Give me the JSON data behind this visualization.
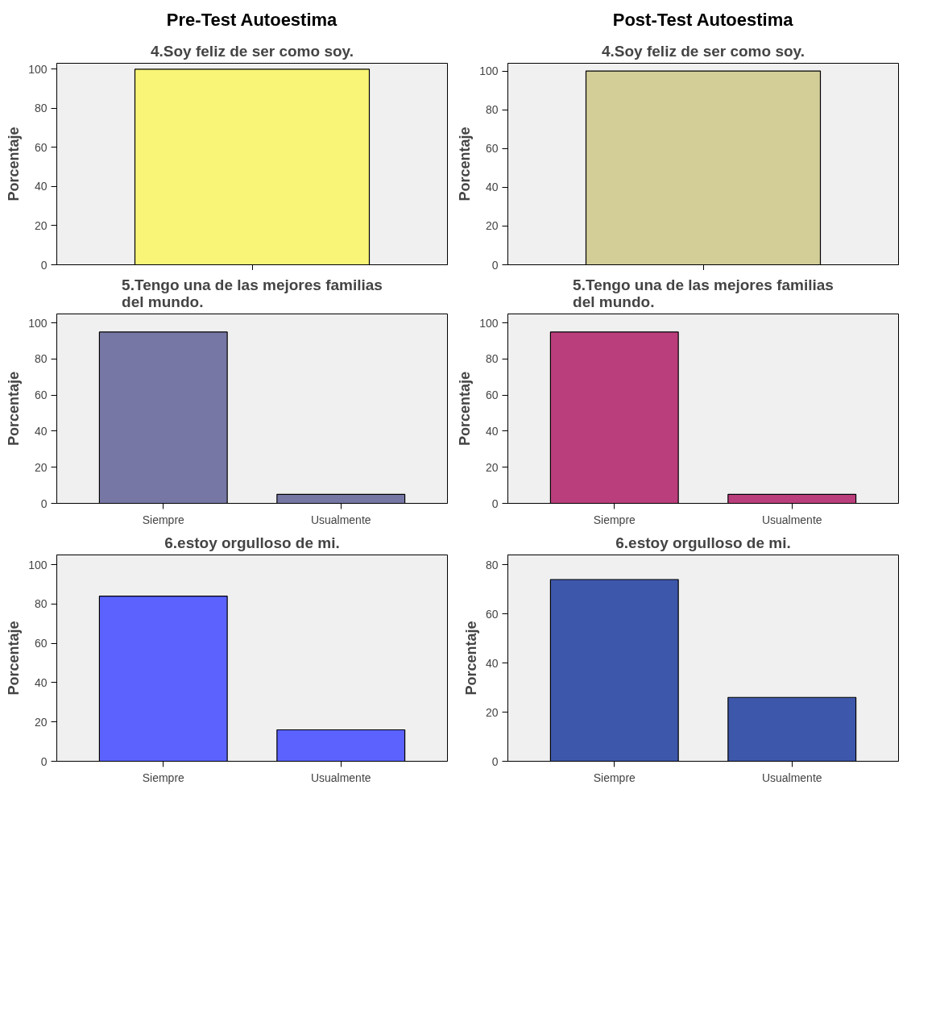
{
  "chart_data": [
    {
      "type": "bar",
      "title": "4.Soy feliz de ser como soy.",
      "annotations": [
        "Pre-Test Autoestima"
      ],
      "ylabel": "Porcentaje",
      "categories": [
        null
      ],
      "values": [
        100
      ],
      "color": "#f8f577",
      "ylim": [
        0,
        103
      ],
      "yticks": [
        0,
        20,
        40,
        60,
        80,
        100
      ],
      "grid": false
    },
    {
      "type": "bar",
      "title": "4.Soy feliz de ser como soy.",
      "annotations": [
        "Post-Test Autoestima"
      ],
      "ylabel": "Porcentaje",
      "categories": [
        null
      ],
      "values": [
        100
      ],
      "color": "#d3ce98",
      "ylim": [
        0,
        104
      ],
      "yticks": [
        0,
        20,
        40,
        60,
        80,
        100
      ],
      "grid": false
    },
    {
      "type": "bar",
      "title": "5.Tengo una de las mejores familias del mundo.",
      "ylabel": "Porcentaje",
      "categories": [
        "Siempre",
        "Usualmente"
      ],
      "values": [
        95,
        5
      ],
      "color": "#7777a6",
      "ylim": [
        0,
        105
      ],
      "yticks": [
        0,
        20,
        40,
        60,
        80,
        100
      ],
      "grid": false
    },
    {
      "type": "bar",
      "title": "5.Tengo una de las mejores familias del mundo.",
      "ylabel": "Porcentaje",
      "categories": [
        "Siempre",
        "Usualmente"
      ],
      "values": [
        95,
        5
      ],
      "color": "#bb3e7c",
      "ylim": [
        0,
        105
      ],
      "yticks": [
        0,
        20,
        40,
        60,
        80,
        100
      ],
      "grid": false
    },
    {
      "type": "bar",
      "title": "6.estoy orgulloso de mi.",
      "ylabel": "Porcentaje",
      "categories": [
        "Siempre",
        "Usualmente"
      ],
      "values": [
        84,
        16
      ],
      "color": "#5b62fe",
      "ylim": [
        0,
        105
      ],
      "yticks": [
        0,
        20,
        40,
        60,
        80,
        100
      ],
      "grid": false
    },
    {
      "type": "bar",
      "title": "6.estoy orgulloso de mi.",
      "ylabel": "Porcentaje",
      "categories": [
        "Siempre",
        "Usualmente"
      ],
      "values": [
        74,
        26
      ],
      "color": "#3d57aa",
      "ylim": [
        0,
        84
      ],
      "yticks": [
        0,
        20,
        40,
        60,
        80
      ],
      "grid": false
    }
  ]
}
